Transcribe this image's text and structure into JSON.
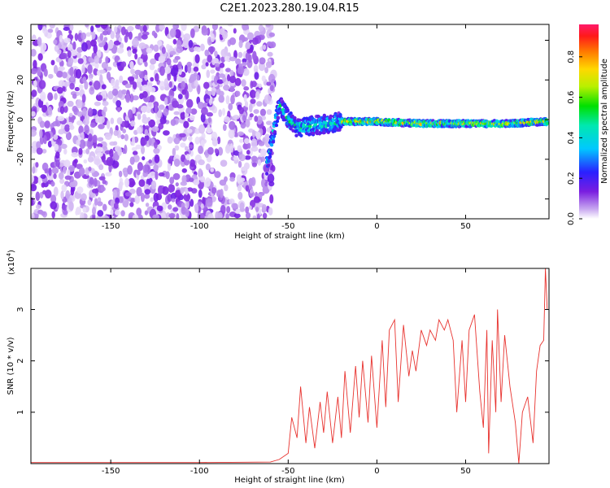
{
  "title": "C2E1.2023.280.19.04.R15",
  "colors": {
    "snr_line": "#e8322e",
    "frame": "#000000",
    "noise_light": "#d8c0f0",
    "noise_dark": "#7a1ee0"
  },
  "chart_data": [
    {
      "type": "heatmap",
      "title": "C2E1.2023.280.19.04.R15",
      "xlabel": "Height of straight line (km)",
      "ylabel": "Frequency (Hz)",
      "xlim": [
        -195,
        97
      ],
      "ylim": [
        -50,
        48
      ],
      "x_ticks": [
        -150,
        -100,
        -50,
        0,
        50
      ],
      "y_ticks": [
        -40,
        -20,
        0,
        20,
        40
      ],
      "colorbar": {
        "label": "Normalized spectral amplitude",
        "range": [
          0.0,
          0.96
        ],
        "ticks": [
          0.0,
          0.2,
          0.4,
          0.6,
          0.8
        ],
        "colormap": "rainbow"
      },
      "features": {
        "noise_region_x": [
          -195,
          -62
        ],
        "signal_ridge": [
          {
            "x": -60,
            "y": -14
          },
          {
            "x": -55,
            "y": 8
          },
          {
            "x": -50,
            "y": 0
          },
          {
            "x": -45,
            "y": -4
          },
          {
            "x": -35,
            "y": -3
          },
          {
            "x": -20,
            "y": -1
          },
          {
            "x": 0,
            "y": -1
          },
          {
            "x": 25,
            "y": -2
          },
          {
            "x": 50,
            "y": -2
          },
          {
            "x": 75,
            "y": -2
          },
          {
            "x": 95,
            "y": -1
          }
        ]
      },
      "grid": false
    },
    {
      "type": "line",
      "xlabel": "Height of straight line (km)",
      "ylabel": "SNR (10 * v/v)",
      "y_multiplier": "(x10",
      "y_exponent": "4",
      "xlim": [
        -195,
        97
      ],
      "ylim": [
        0,
        3.8
      ],
      "x_ticks": [
        -150,
        -100,
        -50,
        0,
        50
      ],
      "y_ticks": [
        1,
        2,
        3
      ],
      "series": [
        {
          "x": [
            -195,
            -100,
            -60,
            -55,
            -50,
            -48,
            -45,
            -43,
            -40,
            -38,
            -35,
            -32,
            -30,
            -28,
            -25,
            -22,
            -20,
            -18,
            -15,
            -12,
            -10,
            -8,
            -5,
            -3,
            0,
            3,
            5,
            7,
            10,
            12,
            15,
            18,
            20,
            22,
            25,
            28,
            30,
            33,
            35,
            38,
            40,
            43,
            45,
            48,
            50,
            52,
            55,
            58,
            60,
            62,
            63,
            65,
            67,
            68,
            70,
            72,
            75,
            78,
            80,
            82,
            85,
            88,
            90,
            92,
            94,
            95,
            96
          ],
          "values": [
            0.02,
            0.02,
            0.03,
            0.08,
            0.2,
            0.9,
            0.5,
            1.5,
            0.4,
            1.1,
            0.3,
            1.2,
            0.6,
            1.4,
            0.4,
            1.3,
            0.5,
            1.8,
            0.6,
            1.9,
            0.9,
            2.0,
            0.8,
            2.1,
            0.7,
            2.4,
            1.1,
            2.6,
            2.8,
            1.2,
            2.7,
            1.7,
            2.2,
            1.8,
            2.6,
            2.3,
            2.6,
            2.4,
            2.8,
            2.6,
            2.8,
            2.4,
            1.0,
            2.4,
            1.2,
            2.6,
            2.9,
            1.4,
            0.7,
            2.6,
            0.2,
            2.4,
            1.0,
            3.0,
            1.2,
            2.5,
            1.5,
            0.8,
            0.0,
            1.0,
            1.3,
            0.4,
            1.8,
            2.3,
            2.4,
            3.8,
            3.0
          ]
        }
      ],
      "grid": false
    }
  ]
}
